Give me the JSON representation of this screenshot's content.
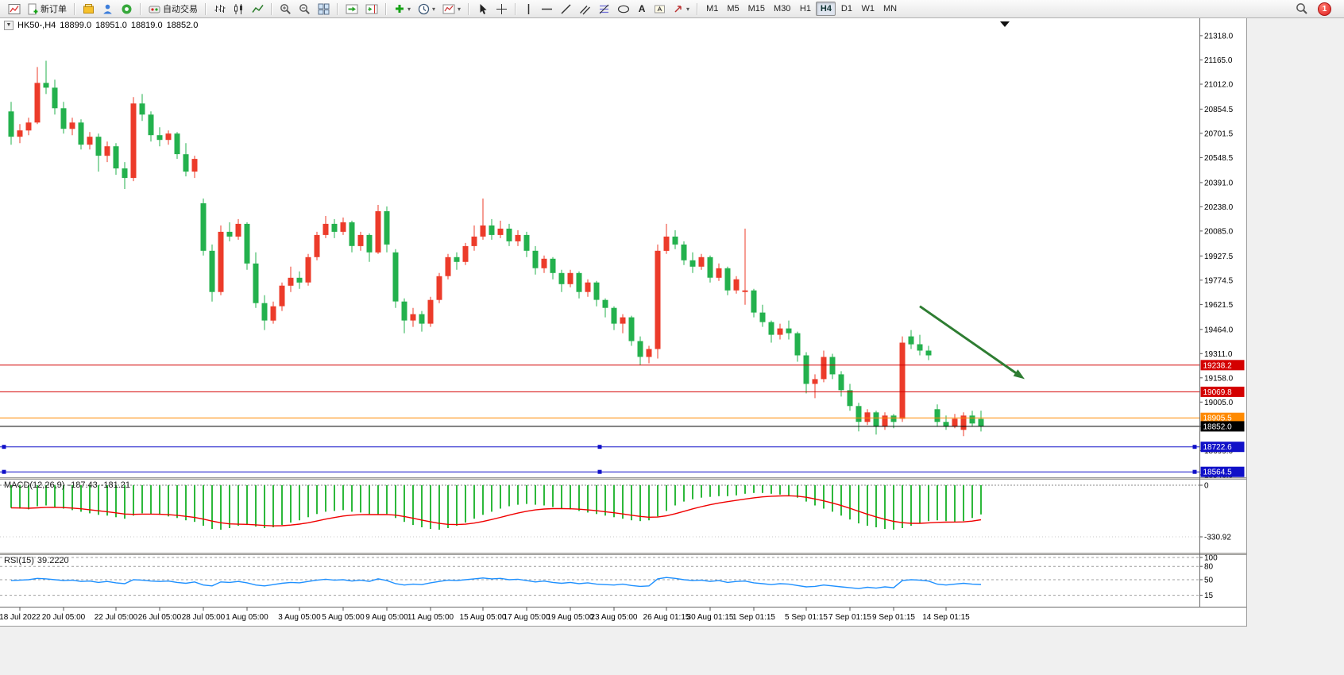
{
  "toolbar": {
    "new_order_label": "新订单",
    "auto_trading_label": "自动交易",
    "text_tool_label": "A",
    "timeframes": [
      "M1",
      "M5",
      "M15",
      "M30",
      "H1",
      "H4",
      "D1",
      "W1",
      "MN"
    ],
    "active_timeframe": "H4",
    "notification_badge": "1"
  },
  "chart_header": {
    "symbol_period": "HK50-,H4",
    "open": "18899.0",
    "high": "18951.0",
    "low": "18819.0",
    "close": "18852.0"
  },
  "macd_header": {
    "name": "MACD(12,26,9)",
    "macd_value": "-187.43",
    "signal_value": "-181.21"
  },
  "rsi_header": {
    "name": "RSI(15)",
    "value": "39.2220"
  },
  "chart_data": [
    {
      "type": "candlestick",
      "symbol": "HK50-",
      "timeframe": "H4",
      "up_color": "#ec3b2a",
      "down_color": "#23b14d",
      "y_axis_range": [
        18530,
        21428
      ],
      "y_ticks": [
        "21318.0",
        "21165.0",
        "21012.0",
        "20854.5",
        "20701.5",
        "20548.5",
        "20391.0",
        "20238.0",
        "20085.0",
        "19927.5",
        "19774.5",
        "19621.5",
        "19464.0",
        "19311.0",
        "19158.0",
        "19005.0",
        "18852.0",
        "18699.0",
        "18546.0"
      ],
      "x_labels": [
        {
          "i": 1,
          "t": "18 Jul 2022"
        },
        {
          "i": 6,
          "t": "20 Jul 05:00"
        },
        {
          "i": 12,
          "t": "22 Jul 05:00"
        },
        {
          "i": 17,
          "t": "26 Jul 05:00"
        },
        {
          "i": 22,
          "t": "28 Jul 05:00"
        },
        {
          "i": 27,
          "t": "1 Aug 05:00"
        },
        {
          "i": 33,
          "t": "3 Aug 05:00"
        },
        {
          "i": 38,
          "t": "5 Aug 05:00"
        },
        {
          "i": 43,
          "t": "9 Aug 05:00"
        },
        {
          "i": 48,
          "t": "11 Aug 05:00"
        },
        {
          "i": 54,
          "t": "15 Aug 05:00"
        },
        {
          "i": 59,
          "t": "17 Aug 05:00"
        },
        {
          "i": 64,
          "t": "19 Aug 05:00"
        },
        {
          "i": 69,
          "t": "23 Aug 05:00"
        },
        {
          "i": 75,
          "t": "26 Aug 01:15"
        },
        {
          "i": 80,
          "t": "30 Aug 01:15"
        },
        {
          "i": 85,
          "t": "1 Sep 01:15"
        },
        {
          "i": 91,
          "t": "5 Sep 01:15"
        },
        {
          "i": 96,
          "t": "7 Sep 01:15"
        },
        {
          "i": 101,
          "t": "9 Sep 01:15"
        },
        {
          "i": 107,
          "t": "14 Sep 01:15"
        }
      ],
      "hlines": [
        {
          "price": 19238.2,
          "text": "19238.2",
          "color": "#d40000",
          "type": "horizontal-line"
        },
        {
          "price": 19069.8,
          "text": "19069.8",
          "color": "#d40000",
          "type": "horizontal-line"
        },
        {
          "price": 18905.5,
          "text": "18905.5",
          "color": "#ff8a00",
          "type": "horizontal-line"
        },
        {
          "price": 18852.0,
          "text": "18852.0",
          "color": "#000000",
          "type": "bid-price"
        },
        {
          "price": 18722.6,
          "text": "18722.6",
          "color": "#1010c8",
          "type": "horizontal-line",
          "handles": true
        },
        {
          "price": 18564.5,
          "text": "18564.5",
          "color": "#1010c8",
          "type": "horizontal-line",
          "handles": true
        }
      ],
      "arrow_annotation": {
        "from_bar": 104,
        "from_price": 19610,
        "to_bar": 116,
        "to_price": 19150,
        "color": "#2e7d32"
      },
      "ohlc": [
        [
          20840,
          20900,
          20630,
          20680
        ],
        [
          20680,
          20760,
          20640,
          20720
        ],
        [
          20720,
          20800,
          20690,
          20770
        ],
        [
          20770,
          21120,
          20760,
          21020
        ],
        [
          21020,
          21160,
          20950,
          20990
        ],
        [
          20990,
          21040,
          20820,
          20860
        ],
        [
          20860,
          20900,
          20700,
          20730
        ],
        [
          20730,
          20800,
          20690,
          20770
        ],
        [
          20770,
          20790,
          20600,
          20630
        ],
        [
          20630,
          20710,
          20600,
          20680
        ],
        [
          20680,
          20700,
          20460,
          20560
        ],
        [
          20560,
          20650,
          20520,
          20620
        ],
        [
          20620,
          20640,
          20440,
          20480
        ],
        [
          20480,
          20520,
          20350,
          20420
        ],
        [
          20420,
          20930,
          20400,
          20890
        ],
        [
          20890,
          20950,
          20780,
          20820
        ],
        [
          20820,
          20840,
          20650,
          20690
        ],
        [
          20690,
          20740,
          20620,
          20660
        ],
        [
          20660,
          20720,
          20630,
          20700
        ],
        [
          20700,
          20710,
          20540,
          20570
        ],
        [
          20570,
          20640,
          20430,
          20460
        ],
        [
          20460,
          20560,
          20420,
          20540
        ],
        [
          20260,
          20290,
          19930,
          19960
        ],
        [
          19960,
          20000,
          19640,
          19700
        ],
        [
          19700,
          20120,
          19680,
          20080
        ],
        [
          20080,
          20140,
          20020,
          20050
        ],
        [
          20050,
          20160,
          20030,
          20130
        ],
        [
          20130,
          20140,
          19840,
          19880
        ],
        [
          19880,
          19950,
          19600,
          19630
        ],
        [
          19630,
          19680,
          19460,
          19520
        ],
        [
          19520,
          19640,
          19500,
          19610
        ],
        [
          19610,
          19760,
          19580,
          19740
        ],
        [
          19740,
          19860,
          19700,
          19790
        ],
        [
          19790,
          19830,
          19720,
          19760
        ],
        [
          19760,
          19940,
          19740,
          19920
        ],
        [
          19920,
          20080,
          19900,
          20060
        ],
        [
          20060,
          20180,
          20040,
          20130
        ],
        [
          20130,
          20160,
          20040,
          20080
        ],
        [
          20080,
          20170,
          20060,
          20140
        ],
        [
          20140,
          20150,
          19950,
          19990
        ],
        [
          19990,
          20080,
          19960,
          20060
        ],
        [
          20060,
          20070,
          19890,
          19950
        ],
        [
          19950,
          20250,
          19940,
          20210
        ],
        [
          20210,
          20240,
          19950,
          20000
        ],
        [
          19950,
          19970,
          19600,
          19640
        ],
        [
          19640,
          19660,
          19440,
          19520
        ],
        [
          19520,
          19600,
          19480,
          19560
        ],
        [
          19560,
          19580,
          19450,
          19500
        ],
        [
          19500,
          19670,
          19480,
          19650
        ],
        [
          19650,
          19820,
          19630,
          19800
        ],
        [
          19800,
          19940,
          19780,
          19920
        ],
        [
          19920,
          19950,
          19840,
          19890
        ],
        [
          19890,
          20010,
          19870,
          19990
        ],
        [
          19990,
          20120,
          19960,
          20050
        ],
        [
          20050,
          20290,
          20030,
          20120
        ],
        [
          20120,
          20160,
          20030,
          20060
        ],
        [
          20060,
          20150,
          20040,
          20100
        ],
        [
          20100,
          20130,
          19990,
          20020
        ],
        [
          20020,
          20090,
          19990,
          20060
        ],
        [
          20060,
          20080,
          19920,
          19960
        ],
        [
          19960,
          19990,
          19810,
          19850
        ],
        [
          19850,
          19930,
          19820,
          19910
        ],
        [
          19910,
          19920,
          19780,
          19820
        ],
        [
          19820,
          19840,
          19700,
          19750
        ],
        [
          19750,
          19840,
          19730,
          19820
        ],
        [
          19820,
          19830,
          19660,
          19700
        ],
        [
          19700,
          19780,
          19670,
          19760
        ],
        [
          19760,
          19770,
          19610,
          19650
        ],
        [
          19650,
          19660,
          19540,
          19600
        ],
        [
          19600,
          19610,
          19460,
          19500
        ],
        [
          19500,
          19560,
          19440,
          19540
        ],
        [
          19540,
          19550,
          19360,
          19390
        ],
        [
          19390,
          19420,
          19240,
          19290
        ],
        [
          19290,
          19360,
          19250,
          19340
        ],
        [
          19340,
          20000,
          19280,
          19960
        ],
        [
          19960,
          20130,
          19940,
          20050
        ],
        [
          20050,
          20090,
          19970,
          20000
        ],
        [
          20000,
          20020,
          19870,
          19900
        ],
        [
          19900,
          19950,
          19820,
          19860
        ],
        [
          19860,
          19940,
          19840,
          19920
        ],
        [
          19920,
          19930,
          19760,
          19790
        ],
        [
          19790,
          19880,
          19770,
          19850
        ],
        [
          19850,
          19860,
          19680,
          19710
        ],
        [
          19710,
          19800,
          19690,
          19780
        ],
        [
          19700,
          20100,
          19620,
          19710
        ],
        [
          19710,
          19720,
          19540,
          19570
        ],
        [
          19570,
          19620,
          19480,
          19510
        ],
        [
          19510,
          19520,
          19380,
          19430
        ],
        [
          19430,
          19500,
          19400,
          19470
        ],
        [
          19470,
          19520,
          19400,
          19440
        ],
        [
          19440,
          19450,
          19260,
          19300
        ],
        [
          19300,
          19320,
          19060,
          19120
        ],
        [
          19120,
          19180,
          19030,
          19150
        ],
        [
          19150,
          19330,
          19130,
          19290
        ],
        [
          19290,
          19310,
          19150,
          19180
        ],
        [
          19180,
          19200,
          19040,
          19080
        ],
        [
          19080,
          19120,
          18950,
          18980
        ],
        [
          18980,
          19000,
          18820,
          18880
        ],
        [
          18880,
          18960,
          18860,
          18940
        ],
        [
          18940,
          18950,
          18800,
          18850
        ],
        [
          18850,
          18940,
          18830,
          18920
        ],
        [
          18920,
          18930,
          18840,
          18880
        ],
        [
          18900,
          19420,
          18880,
          19380
        ],
        [
          19420,
          19460,
          19340,
          19370
        ],
        [
          19370,
          19430,
          19300,
          19330
        ],
        [
          19330,
          19360,
          19270,
          19300
        ],
        [
          18960,
          18990,
          18850,
          18880
        ],
        [
          18880,
          18920,
          18830,
          18850
        ],
        [
          18850,
          18930,
          18840,
          18900
        ],
        [
          18830,
          18940,
          18790,
          18920
        ],
        [
          18920,
          18950,
          18850,
          18870
        ],
        [
          18899,
          18951,
          18819,
          18852
        ]
      ]
    },
    {
      "type": "bar",
      "name": "MACD(12,26,9)",
      "current": -187.43,
      "signal_current": -181.21,
      "axis_ticks": [
        "0",
        "-330.92"
      ],
      "color": "#2db83b",
      "signal_color": "#f00000",
      "values": [
        -145,
        -150,
        -155,
        -135,
        -130,
        -140,
        -150,
        -160,
        -170,
        -180,
        -190,
        -195,
        -205,
        -215,
        -195,
        -180,
        -185,
        -190,
        -200,
        -210,
        -225,
        -235,
        -260,
        -280,
        -285,
        -275,
        -260,
        -255,
        -265,
        -275,
        -270,
        -255,
        -240,
        -225,
        -205,
        -185,
        -170,
        -165,
        -160,
        -170,
        -175,
        -185,
        -190,
        -185,
        -210,
        -235,
        -255,
        -270,
        -280,
        -285,
        -275,
        -260,
        -240,
        -215,
        -190,
        -170,
        -150,
        -135,
        -125,
        -120,
        -125,
        -130,
        -140,
        -150,
        -155,
        -165,
        -175,
        -185,
        -195,
        -205,
        -215,
        -225,
        -230,
        -225,
        -200,
        -165,
        -130,
        -105,
        -90,
        -80,
        -75,
        -70,
        -70,
        -65,
        -55,
        -50,
        -50,
        -55,
        -60,
        -65,
        -80,
        -105,
        -130,
        -150,
        -170,
        -195,
        -220,
        -245,
        -260,
        -270,
        -280,
        -285,
        -275,
        -260,
        -245,
        -230,
        -225,
        -230,
        -235,
        -230,
        -210,
        -187.43
      ]
    },
    {
      "type": "line",
      "name": "RSI(15)",
      "current": 39.222,
      "axis_ticks": [
        "100",
        "80",
        "50",
        "15"
      ],
      "levels": [
        100,
        80,
        50,
        15
      ],
      "color": "#1e90ff",
      "values": [
        48,
        49,
        50,
        53,
        52,
        50,
        48,
        49,
        46,
        47,
        44,
        46,
        43,
        41,
        50,
        49,
        47,
        46,
        47,
        44,
        42,
        45,
        38,
        36,
        45,
        44,
        46,
        43,
        38,
        36,
        39,
        42,
        44,
        43,
        46,
        49,
        51,
        49,
        50,
        47,
        49,
        46,
        52,
        48,
        41,
        38,
        40,
        39,
        43,
        46,
        49,
        48,
        50,
        52,
        54,
        52,
        53,
        50,
        51,
        48,
        45,
        47,
        44,
        42,
        44,
        41,
        43,
        40,
        39,
        38,
        40,
        37,
        35,
        36,
        52,
        55,
        53,
        50,
        48,
        49,
        46,
        48,
        44,
        46,
        47,
        43,
        41,
        39,
        41,
        40,
        37,
        34,
        35,
        38,
        36,
        34,
        32,
        30,
        33,
        31,
        34,
        32,
        48,
        50,
        49,
        47,
        40,
        38,
        40,
        42,
        40,
        39.22
      ]
    }
  ]
}
